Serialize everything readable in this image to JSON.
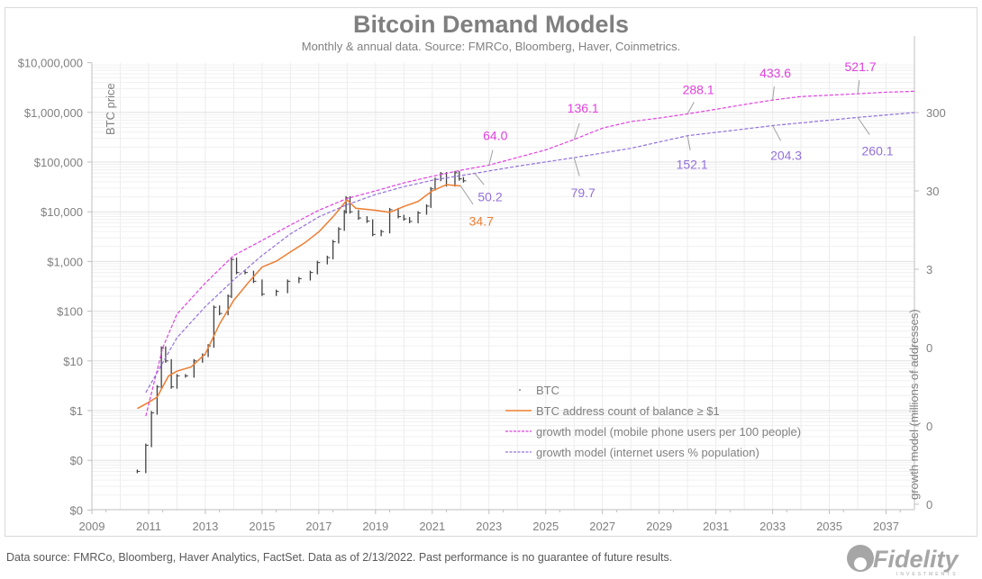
{
  "chart_data": {
    "type": "line",
    "title": "Bitcoin Demand Models",
    "subtitle": "Monthly & annual data.  Source: FMRCo, Bloomberg, Haver, Coinmetrics.",
    "ylabel": "BTC price",
    "y2label": "growth model (millions of addresses)",
    "xlim": [
      2009,
      2038
    ],
    "x_ticks": [
      "2009",
      "2011",
      "2013",
      "2015",
      "2017",
      "2019",
      "2021",
      "2023",
      "2025",
      "2027",
      "2029",
      "2031",
      "2033",
      "2035",
      "2037"
    ],
    "y_scale": "log",
    "y_ticks": [
      "$0",
      "$0",
      "$1",
      "$10",
      "$100",
      "$1,000",
      "$10,000",
      "$100,000",
      "$1,000,000",
      "$10,000,000"
    ],
    "y2_scale": "log",
    "y2_ticks": [
      "0",
      "0",
      "0",
      "3",
      "30",
      "300"
    ],
    "grid": true,
    "legend_placement": "bottom-center",
    "series": [
      {
        "name": "BTC",
        "axis": "left",
        "color": "#404040",
        "style": "monthly bars",
        "points": [
          [
            2010.6,
            0.06
          ],
          [
            2010.9,
            0.2
          ],
          [
            2011.1,
            0.9
          ],
          [
            2011.3,
            3
          ],
          [
            2011.45,
            18
          ],
          [
            2011.6,
            10
          ],
          [
            2011.8,
            3
          ],
          [
            2012.0,
            5
          ],
          [
            2012.3,
            5
          ],
          [
            2012.6,
            10
          ],
          [
            2012.9,
            13
          ],
          [
            2013.1,
            20
          ],
          [
            2013.3,
            120
          ],
          [
            2013.5,
            90
          ],
          [
            2013.8,
            200
          ],
          [
            2013.92,
            1100
          ],
          [
            2014.1,
            600
          ],
          [
            2014.4,
            600
          ],
          [
            2014.7,
            400
          ],
          [
            2015.0,
            220
          ],
          [
            2015.5,
            250
          ],
          [
            2015.9,
            400
          ],
          [
            2016.3,
            450
          ],
          [
            2016.7,
            600
          ],
          [
            2016.95,
            950
          ],
          [
            2017.3,
            1200
          ],
          [
            2017.5,
            2500
          ],
          [
            2017.7,
            4500
          ],
          [
            2017.9,
            10000
          ],
          [
            2017.96,
            19000
          ],
          [
            2018.1,
            10000
          ],
          [
            2018.4,
            7500
          ],
          [
            2018.7,
            6500
          ],
          [
            2018.9,
            3500
          ],
          [
            2019.2,
            4000
          ],
          [
            2019.5,
            11000
          ],
          [
            2019.8,
            8000
          ],
          [
            2020.0,
            7200
          ],
          [
            2020.2,
            6400
          ],
          [
            2020.5,
            9500
          ],
          [
            2020.8,
            13000
          ],
          [
            2020.95,
            29000
          ],
          [
            2021.1,
            45000
          ],
          [
            2021.3,
            58000
          ],
          [
            2021.5,
            35000
          ],
          [
            2021.8,
            61000
          ],
          [
            2021.95,
            46000
          ],
          [
            2022.1,
            42000
          ]
        ]
      },
      {
        "name": "BTC address count of balance ≥ $1",
        "axis": "right",
        "color": "#ed7d31",
        "style": "solid",
        "points": [
          [
            2010.6,
            0.05
          ],
          [
            2011,
            0.06
          ],
          [
            2011.3,
            0.07
          ],
          [
            2011.7,
            0.13
          ],
          [
            2012,
            0.15
          ],
          [
            2012.5,
            0.17
          ],
          [
            2013,
            0.25
          ],
          [
            2013.5,
            0.6
          ],
          [
            2014,
            1.2
          ],
          [
            2014.5,
            2
          ],
          [
            2015,
            3.2
          ],
          [
            2015.5,
            3.8
          ],
          [
            2016,
            5
          ],
          [
            2016.5,
            6.5
          ],
          [
            2017,
            9
          ],
          [
            2017.5,
            14
          ],
          [
            2018,
            23
          ],
          [
            2018.3,
            18
          ],
          [
            2019,
            17
          ],
          [
            2019.5,
            16
          ],
          [
            2020,
            19
          ],
          [
            2020.5,
            22
          ],
          [
            2021,
            30
          ],
          [
            2021.5,
            36
          ],
          [
            2022,
            34.7
          ]
        ]
      },
      {
        "name": "growth model (mobile phone users per 100 people)",
        "axis": "right",
        "color": "#e040e0",
        "style": "dashed",
        "points": [
          [
            2010.9,
            0.04
          ],
          [
            2011.5,
            0.3
          ],
          [
            2012,
            0.8
          ],
          [
            2013,
            2
          ],
          [
            2014,
            4.5
          ],
          [
            2015,
            7
          ],
          [
            2016,
            11
          ],
          [
            2017,
            17
          ],
          [
            2018,
            24
          ],
          [
            2019,
            30
          ],
          [
            2020,
            38
          ],
          [
            2021,
            46
          ],
          [
            2022,
            55
          ],
          [
            2023,
            64
          ],
          [
            2024,
            80
          ],
          [
            2025,
            100
          ],
          [
            2026,
            136.1
          ],
          [
            2027,
            190
          ],
          [
            2028,
            230
          ],
          [
            2029,
            255
          ],
          [
            2030,
            288.1
          ],
          [
            2031,
            330
          ],
          [
            2032,
            380
          ],
          [
            2033,
            433.6
          ],
          [
            2034,
            480
          ],
          [
            2035,
            500
          ],
          [
            2036,
            521.7
          ],
          [
            2037,
            545
          ],
          [
            2038,
            560
          ]
        ]
      },
      {
        "name": "growth model (internet users % population)",
        "axis": "right",
        "color": "#9370db",
        "style": "dashed",
        "points": [
          [
            2010.9,
            0.08
          ],
          [
            2012,
            0.4
          ],
          [
            2013,
            1
          ],
          [
            2014,
            2.2
          ],
          [
            2015,
            4.5
          ],
          [
            2016,
            8.5
          ],
          [
            2017,
            14
          ],
          [
            2018,
            20
          ],
          [
            2019,
            27
          ],
          [
            2020,
            34
          ],
          [
            2021,
            41
          ],
          [
            2022,
            47
          ],
          [
            2022.5,
            50.2
          ],
          [
            2024,
            62
          ],
          [
            2026,
            79.7
          ],
          [
            2028,
            105
          ],
          [
            2030,
            152.1
          ],
          [
            2032,
            185
          ],
          [
            2033,
            204.3
          ],
          [
            2036,
            260.1
          ],
          [
            2038,
            300
          ]
        ]
      }
    ],
    "annotations": [
      {
        "text": "34.7",
        "color": "#ed7d31",
        "x": 2022,
        "y": 34.7
      },
      {
        "text": "64.0",
        "color": "#e040e0",
        "x": 2023,
        "y": 64
      },
      {
        "text": "136.1",
        "color": "#e040e0",
        "x": 2026,
        "y": 136.1
      },
      {
        "text": "288.1",
        "color": "#e040e0",
        "x": 2030,
        "y": 288.1
      },
      {
        "text": "433.6",
        "color": "#e040e0",
        "x": 2033,
        "y": 433.6
      },
      {
        "text": "521.7",
        "color": "#e040e0",
        "x": 2036,
        "y": 521.7
      },
      {
        "text": "50.2",
        "color": "#9370db",
        "x": 2022.5,
        "y": 50.2
      },
      {
        "text": "79.7",
        "color": "#9370db",
        "x": 2026,
        "y": 79.7
      },
      {
        "text": "152.1",
        "color": "#9370db",
        "x": 2030,
        "y": 152.1
      },
      {
        "text": "204.3",
        "color": "#9370db",
        "x": 2033,
        "y": 204.3
      },
      {
        "text": "260.1",
        "color": "#9370db",
        "x": 2036,
        "y": 260.1
      }
    ]
  },
  "footer": "Data source: FMRCo, Bloomberg, Haver Analytics, FactSet. Data as of 2/13/2022. Past performance is no guarantee of future results.",
  "logo": {
    "text": "Fidelity",
    "subtext": "INVESTMENTS"
  }
}
